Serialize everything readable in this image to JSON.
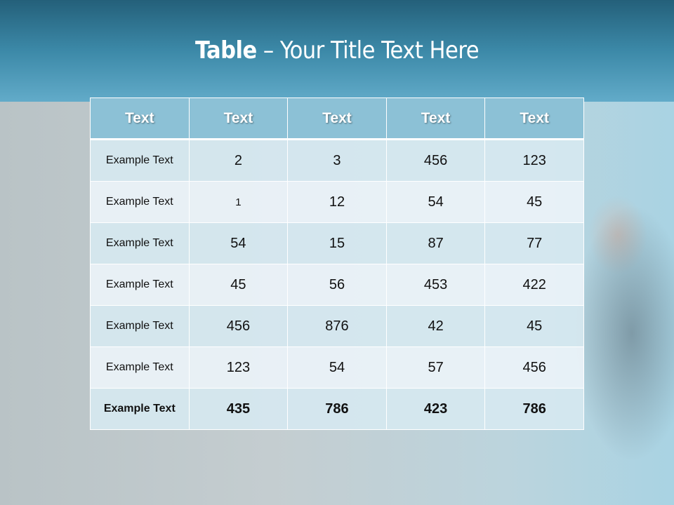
{
  "slide": {
    "title_bold": "Table",
    "title_rest": " – Your Title Text Here"
  },
  "table": {
    "headers": [
      "Text",
      "Text",
      "Text",
      "Text",
      "Text"
    ],
    "rows": [
      [
        "Example Text",
        "2",
        "3",
        "456",
        "123"
      ],
      [
        "Example Text",
        "1",
        "12",
        "54",
        "45"
      ],
      [
        "Example Text",
        "54",
        "15",
        "87",
        "77"
      ],
      [
        "Example Text",
        "45",
        "56",
        "453",
        "422"
      ],
      [
        "Example Text",
        "456",
        "876",
        "42",
        "45"
      ],
      [
        "Example Text",
        "123",
        "54",
        "57",
        "456"
      ],
      [
        "Example Text",
        "435",
        "786",
        "423",
        "786"
      ]
    ]
  },
  "colors": {
    "header_bg": "#8cc1d6",
    "band_top": "#24607a",
    "band_bottom": "#62abc9",
    "row_odd": "#d6e8f0",
    "row_even": "#ecf3f8"
  }
}
